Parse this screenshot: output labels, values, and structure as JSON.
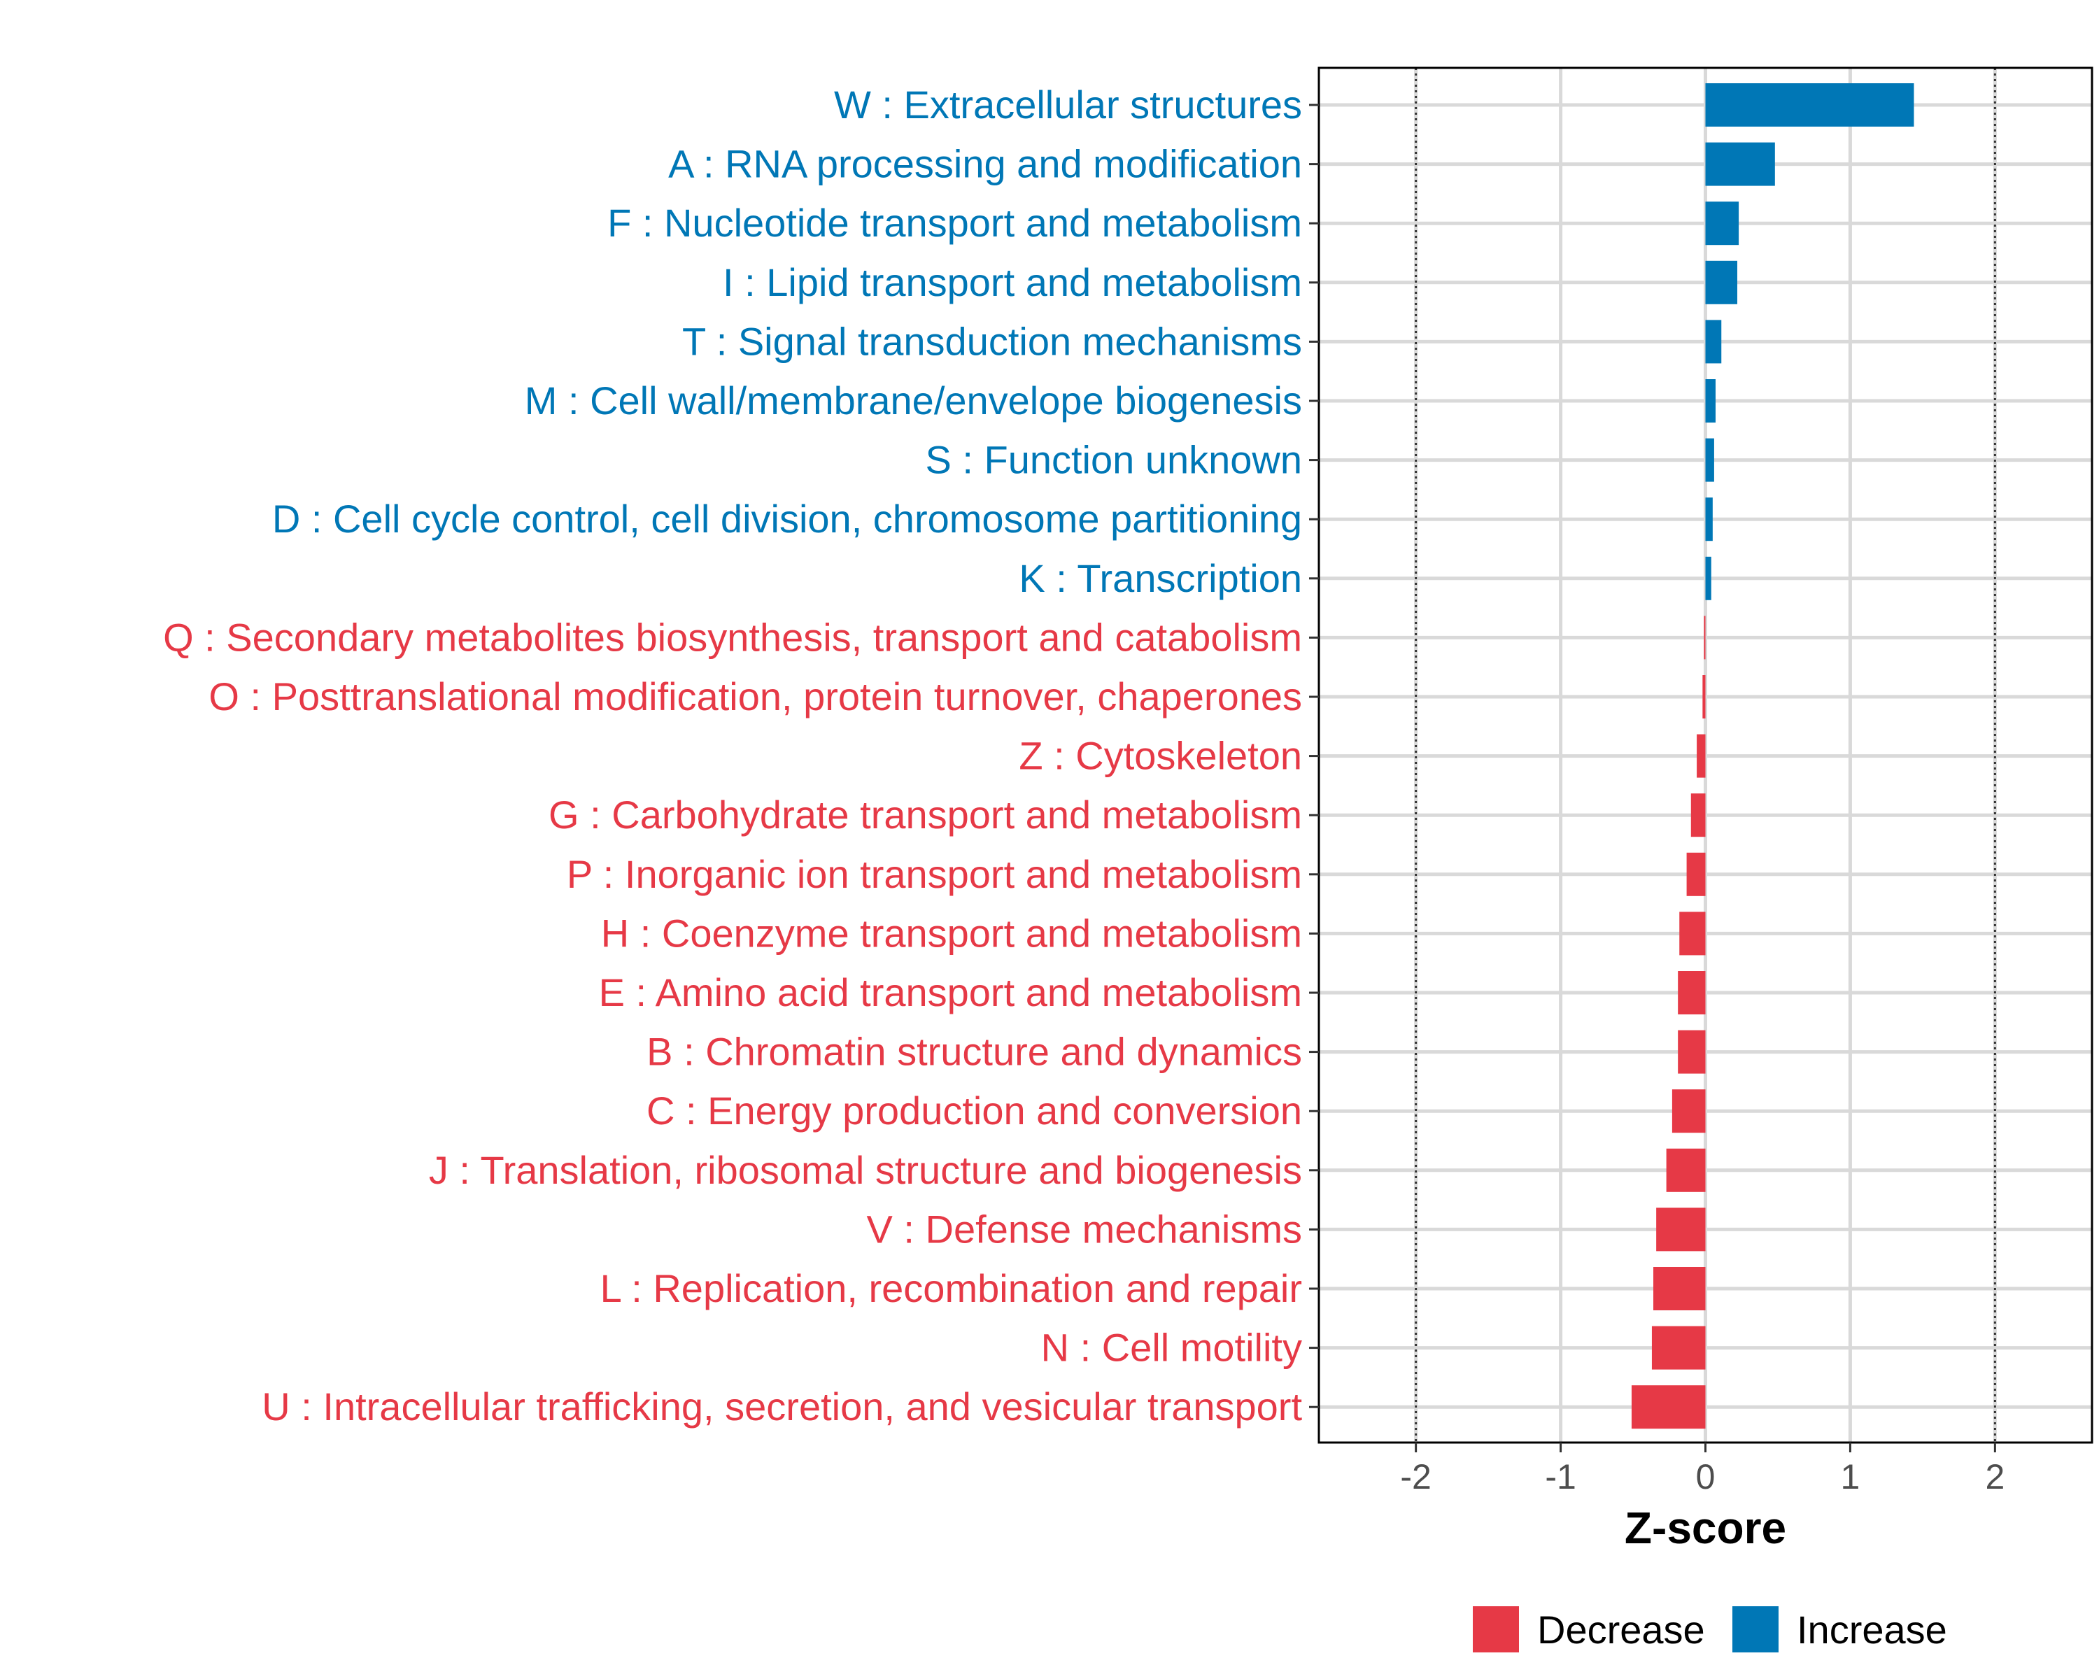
{
  "chart_data": {
    "type": "bar",
    "orientation": "horizontal",
    "xlabel": "Z-score",
    "xlim": [
      -2.67,
      2.67
    ],
    "xticks": [
      -2,
      -1,
      0,
      1,
      2
    ],
    "xtick_labels": [
      "-2",
      "-1",
      "0",
      "1",
      "2"
    ],
    "reference_lines": [
      -2,
      2
    ],
    "grid": true,
    "legend_position": "bottom",
    "colors": {
      "Decrease": "#e63946",
      "Increase": "#0077b6"
    },
    "legend": [
      {
        "label": "Decrease",
        "color": "#e63946"
      },
      {
        "label": "Increase",
        "color": "#0077b6"
      }
    ],
    "categories": [
      "W : Extracellular structures",
      "A : RNA processing and modification",
      "F : Nucleotide transport and metabolism",
      "I : Lipid transport and metabolism",
      "T : Signal transduction mechanisms",
      "M : Cell wall/membrane/envelope biogenesis",
      "S : Function unknown",
      "D : Cell cycle control, cell division, chromosome partitioning",
      "K : Transcription",
      "Q : Secondary metabolites biosynthesis, transport and catabolism",
      "O : Posttranslational modification, protein turnover, chaperones",
      "Z : Cytoskeleton",
      "G : Carbohydrate transport and metabolism",
      "P : Inorganic ion transport and metabolism",
      "H : Coenzyme transport and metabolism",
      "E : Amino acid transport and metabolism",
      "B : Chromatin structure and dynamics",
      "C : Energy production and conversion",
      "J : Translation, ribosomal structure and biogenesis",
      "V : Defense mechanisms",
      "L : Replication, recombination and repair",
      "N : Cell motility",
      "U : Intracellular trafficking, secretion, and vesicular transport"
    ],
    "values": [
      1.44,
      0.48,
      0.23,
      0.22,
      0.11,
      0.07,
      0.06,
      0.05,
      0.04,
      -0.01,
      -0.02,
      -0.06,
      -0.1,
      -0.13,
      -0.18,
      -0.19,
      -0.19,
      -0.23,
      -0.27,
      -0.34,
      -0.36,
      -0.37,
      -0.51
    ],
    "groups": [
      "Increase",
      "Increase",
      "Increase",
      "Increase",
      "Increase",
      "Increase",
      "Increase",
      "Increase",
      "Increase",
      "Decrease",
      "Decrease",
      "Decrease",
      "Decrease",
      "Decrease",
      "Decrease",
      "Decrease",
      "Decrease",
      "Decrease",
      "Decrease",
      "Decrease",
      "Decrease",
      "Decrease",
      "Decrease"
    ]
  }
}
